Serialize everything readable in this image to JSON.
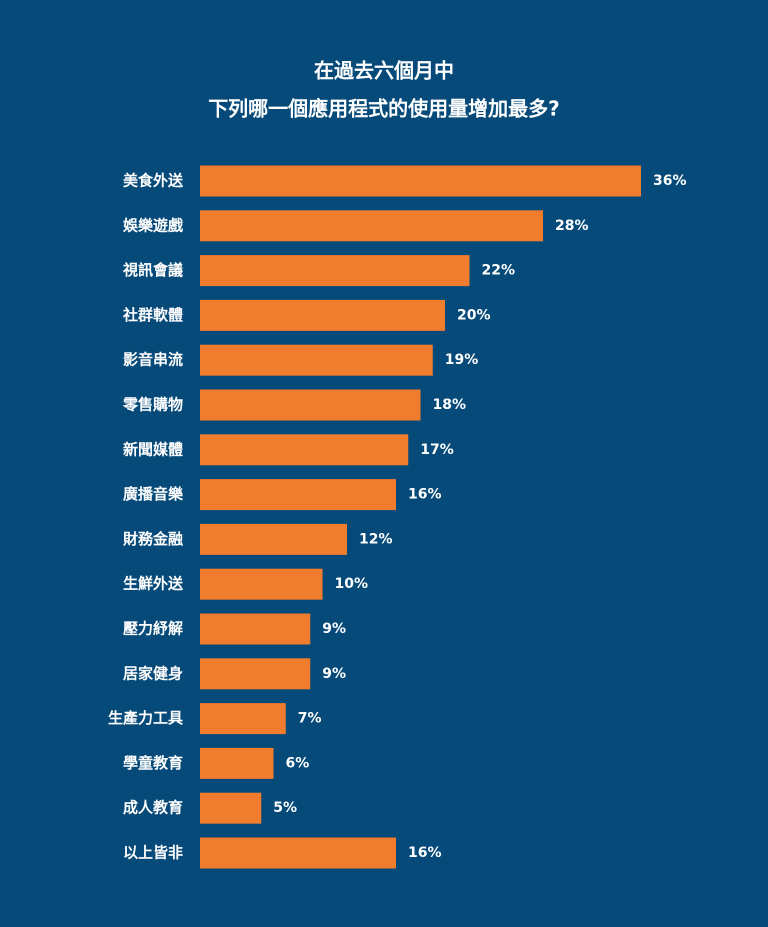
{
  "chart_data": {
    "type": "bar",
    "orientation": "horizontal",
    "title": "在過去六個月中",
    "subtitle": "下列哪一個應用程式的使用量增加最多?",
    "categories": [
      "美食外送",
      "娛樂遊戲",
      "視訊會議",
      "社群軟體",
      "影音串流",
      "零售購物",
      "新聞媒體",
      "廣播音樂",
      "財務金融",
      "生鮮外送",
      "壓力紓解",
      "居家健身",
      "生產力工具",
      "學童教育",
      "成人教育",
      "以上皆非"
    ],
    "values": [
      36,
      28,
      22,
      20,
      19,
      18,
      17,
      16,
      12,
      10,
      9,
      9,
      7,
      6,
      5,
      16
    ],
    "value_labels": [
      "36%",
      "28%",
      "22%",
      "20%",
      "19%",
      "18%",
      "17%",
      "16%",
      "12%",
      "10%",
      "9%",
      "9%",
      "7%",
      "6%",
      "5%",
      "16%"
    ],
    "color": "#f07c2e"
  }
}
